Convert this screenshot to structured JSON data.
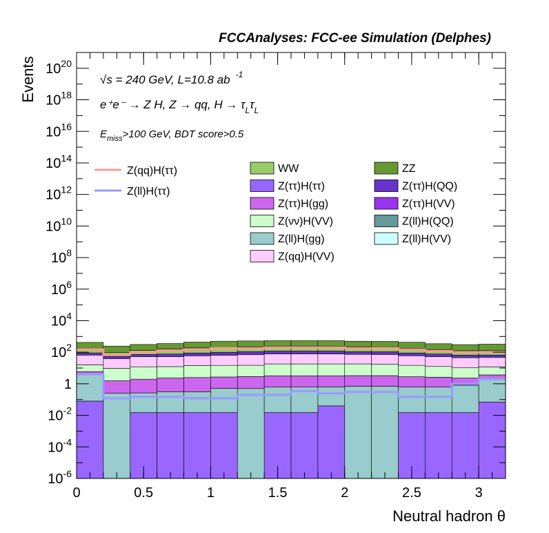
{
  "chart_data": {
    "type": "bar",
    "stacked": true,
    "y_scale": "log",
    "header": "FCCAnalyses: FCC-ee Simulation (Delphes)",
    "xlabel": "Neutral hadron θ",
    "ylabel": "Events",
    "xlim": [
      0,
      3.2
    ],
    "ylim": [
      1e-06,
      1e+21
    ],
    "x_ticks": [
      {
        "v": 0,
        "label": "0"
      },
      {
        "v": 0.5,
        "label": "0.5"
      },
      {
        "v": 1,
        "label": "1"
      },
      {
        "v": 1.5,
        "label": "1.5"
      },
      {
        "v": 2,
        "label": "2"
      },
      {
        "v": 2.5,
        "label": "2.5"
      },
      {
        "v": 3,
        "label": "3"
      }
    ],
    "y_ticks": [
      {
        "exp": -6,
        "base": "10",
        "sup": "-6"
      },
      {
        "exp": -4,
        "base": "10",
        "sup": "-4"
      },
      {
        "exp": -2,
        "base": "10",
        "sup": "-2"
      },
      {
        "exp": 0,
        "base": "1",
        "sup": ""
      },
      {
        "exp": 2,
        "base": "10",
        "sup": "2"
      },
      {
        "exp": 4,
        "base": "10",
        "sup": "4"
      },
      {
        "exp": 6,
        "base": "10",
        "sup": "6"
      },
      {
        "exp": 8,
        "base": "10",
        "sup": "8"
      },
      {
        "exp": 10,
        "base": "10",
        "sup": "10"
      },
      {
        "exp": 12,
        "base": "10",
        "sup": "12"
      },
      {
        "exp": 14,
        "base": "10",
        "sup": "14"
      },
      {
        "exp": 16,
        "base": "10",
        "sup": "16"
      },
      {
        "exp": 18,
        "base": "10",
        "sup": "18"
      },
      {
        "exp": 20,
        "base": "10",
        "sup": "20"
      }
    ],
    "annotations": [
      {
        "id": "sqrt-s",
        "text": "√s = 240 GeV, L=10.8 ab",
        "sup": "-1"
      },
      {
        "id": "process",
        "text": "e⁺e⁻ → Z H, Z → qq, H → τ",
        "sub1": "L",
        "mid": "τ",
        "sub2": "L"
      },
      {
        "id": "cuts",
        "pre": "E",
        "sub": "miss",
        "text": ">100 GeV, BDT score>0.5"
      }
    ],
    "bin_edges": [
      0,
      0.2,
      0.4,
      0.6,
      0.8,
      1.0,
      1.2,
      1.4,
      1.6,
      1.8,
      2.0,
      2.2,
      2.4,
      2.6,
      2.8,
      3.0,
      3.2
    ],
    "stack_series": [
      {
        "name": "Z(ττ)H(ττ)",
        "color": "#9966ff",
        "values": [
          0.08,
          0,
          0.015,
          0.015,
          0.015,
          0.015,
          0,
          0.015,
          0.015,
          0.04,
          0,
          0,
          0.015,
          0.015,
          0.015,
          0.07
        ]
      },
      {
        "name": "Z(ll)H(gg)",
        "color": "#99cccc",
        "values": [
          3.8,
          0.25,
          0.25,
          0.3,
          0.3,
          0.5,
          0.5,
          0.6,
          0.6,
          0.6,
          0.7,
          0.7,
          0.6,
          0.6,
          0.8,
          2.0
        ]
      },
      {
        "name": "Z(ττ)H(gg)",
        "color": "#cc66ee",
        "values": [
          2.0,
          1.3,
          1.7,
          2.0,
          2.2,
          2.2,
          2.4,
          2.6,
          2.6,
          2.6,
          2.6,
          2.6,
          2.2,
          2.0,
          1.5,
          1.6
        ]
      },
      {
        "name": "Z(νν)H(VV)",
        "color": "#ccffcc",
        "values": [
          10,
          8,
          10,
          10,
          12,
          12,
          12,
          15,
          15,
          15,
          15,
          14,
          12,
          10,
          8,
          8
        ]
      },
      {
        "name": "Z(qq)H(VV)",
        "color": "#ffccff",
        "values": [
          50,
          30,
          40,
          40,
          45,
          50,
          55,
          60,
          60,
          60,
          55,
          55,
          45,
          40,
          35,
          35
        ]
      },
      {
        "name": "Z(ττ)H(QQ)",
        "color": "#6633cc",
        "values": [
          25,
          15,
          20,
          25,
          30,
          35,
          40,
          40,
          40,
          40,
          35,
          35,
          30,
          25,
          20,
          20
        ]
      },
      {
        "name": "WW",
        "color": "#99cc66",
        "values": [
          80,
          40,
          60,
          80,
          100,
          100,
          110,
          120,
          120,
          120,
          110,
          100,
          90,
          70,
          60,
          60
        ]
      },
      {
        "name": "ZZ",
        "color": "#669933",
        "values": [
          250,
          150,
          180,
          200,
          250,
          300,
          300,
          300,
          300,
          300,
          280,
          280,
          250,
          200,
          180,
          200
        ]
      }
    ],
    "line_series": [
      {
        "name": "Z(qq)H(ττ)",
        "color": "#ff9999",
        "values": [
          150,
          70,
          100,
          130,
          150,
          180,
          180,
          200,
          200,
          200,
          180,
          180,
          150,
          120,
          100,
          100
        ]
      },
      {
        "name": "Z(ll)H(ττ)",
        "color": "#9999ff",
        "values": [
          4,
          0.12,
          0.15,
          0.15,
          0.12,
          0.12,
          0.2,
          0.2,
          0.35,
          0.25,
          0.3,
          0.3,
          0.15,
          0.15,
          1.0,
          2.0
        ]
      }
    ],
    "legend_lines": [
      {
        "name": "Z(qq)H(ττ)",
        "color": "#ff9999"
      },
      {
        "name": "Z(ll)H(ττ)",
        "color": "#9999ff"
      }
    ],
    "legend_boxes": [
      {
        "name": "WW",
        "color": "#99cc66"
      },
      {
        "name": "ZZ",
        "color": "#669933"
      },
      {
        "name": "Z(ττ)H(ττ)",
        "color": "#9966ff"
      },
      {
        "name": "Z(ττ)H(QQ)",
        "color": "#6633cc"
      },
      {
        "name": "Z(ττ)H(gg)",
        "color": "#cc66ee"
      },
      {
        "name": "Z(ττ)H(VV)",
        "color": "#9933ee"
      },
      {
        "name": "Z(νν)H(VV)",
        "color": "#ccffcc"
      },
      {
        "name": "Z(ll)H(QQ)",
        "color": "#669999"
      },
      {
        "name": "Z(ll)H(gg)",
        "color": "#99cccc"
      },
      {
        "name": "Z(ll)H(VV)",
        "color": "#ccffff"
      },
      {
        "name": "Z(qq)H(VV)",
        "color": "#ffccff"
      }
    ]
  }
}
